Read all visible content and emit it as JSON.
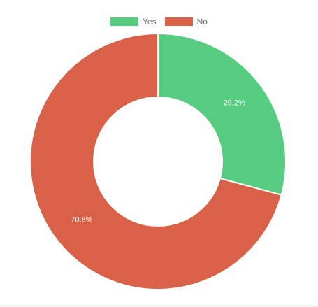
{
  "chart_data": {
    "type": "pie",
    "variant": "doughnut",
    "title": "",
    "categories": [
      "Yes",
      "No"
    ],
    "values": [
      29.2,
      70.8
    ],
    "labels": [
      "29.2%",
      "70.8%"
    ],
    "colors": [
      "#55cc7f",
      "#d96147"
    ],
    "legend": {
      "position": "top",
      "items": [
        {
          "label": "Yes",
          "color": "#55cc7f"
        },
        {
          "label": "No",
          "color": "#d96147"
        }
      ]
    }
  }
}
